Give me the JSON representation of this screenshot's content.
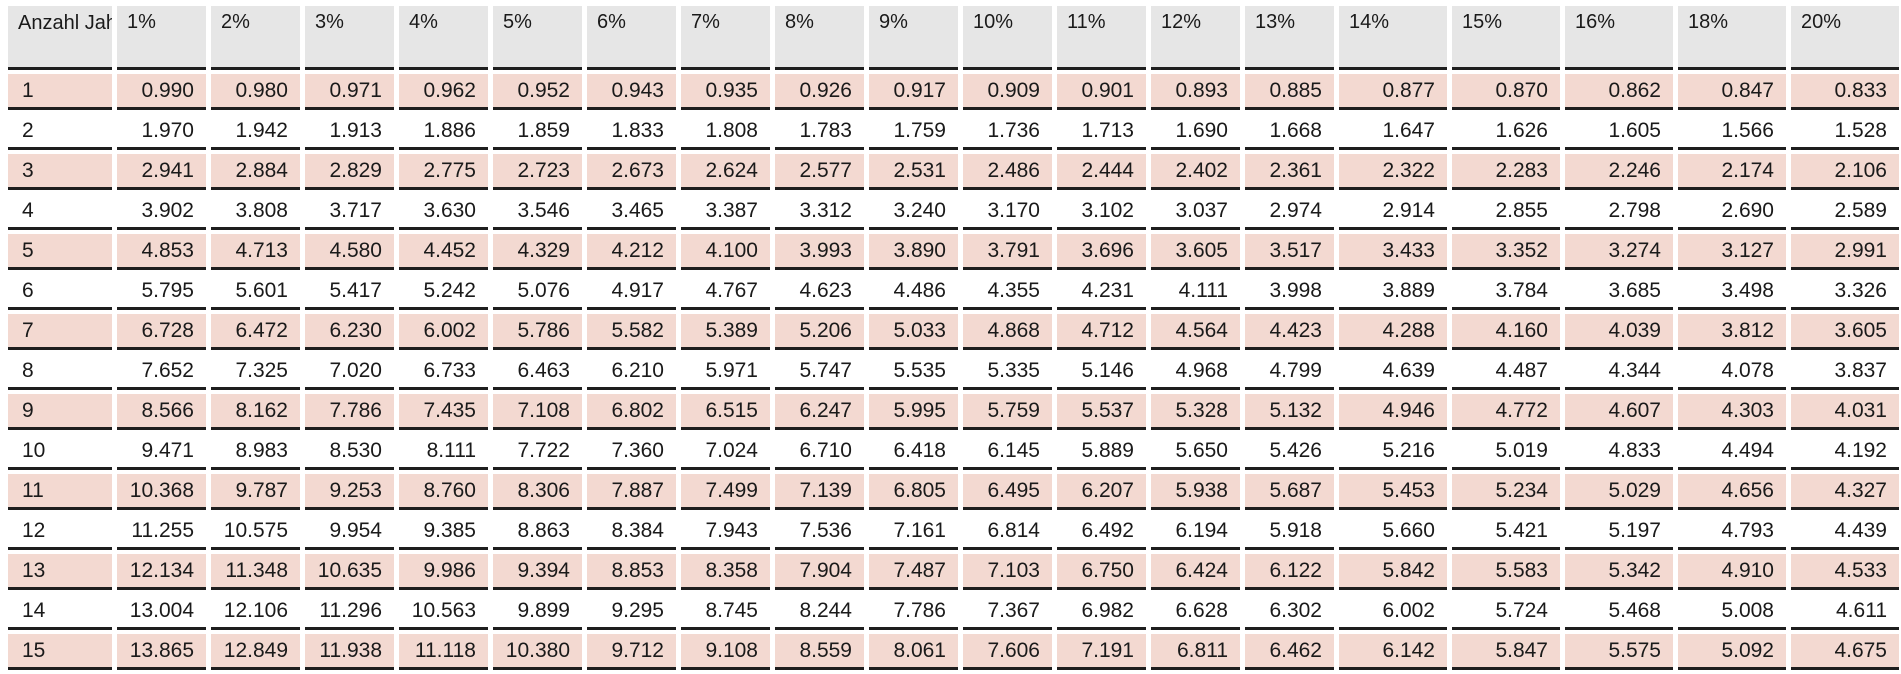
{
  "table": {
    "row_header_label": "Anzahl Jahre",
    "columns": [
      "1%",
      "2%",
      "3%",
      "4%",
      "5%",
      "6%",
      "7%",
      "8%",
      "9%",
      "10%",
      "11%",
      "12%",
      "13%",
      "14%",
      "15%",
      "16%",
      "18%",
      "20%"
    ],
    "rows": [
      {
        "year": "1",
        "values": [
          "0.990",
          "0.980",
          "0.971",
          "0.962",
          "0.952",
          "0.943",
          "0.935",
          "0.926",
          "0.917",
          "0.909",
          "0.901",
          "0.893",
          "0.885",
          "0.877",
          "0.870",
          "0.862",
          "0.847",
          "0.833"
        ]
      },
      {
        "year": "2",
        "values": [
          "1.970",
          "1.942",
          "1.913",
          "1.886",
          "1.859",
          "1.833",
          "1.808",
          "1.783",
          "1.759",
          "1.736",
          "1.713",
          "1.690",
          "1.668",
          "1.647",
          "1.626",
          "1.605",
          "1.566",
          "1.528"
        ]
      },
      {
        "year": "3",
        "values": [
          "2.941",
          "2.884",
          "2.829",
          "2.775",
          "2.723",
          "2.673",
          "2.624",
          "2.577",
          "2.531",
          "2.486",
          "2.444",
          "2.402",
          "2.361",
          "2.322",
          "2.283",
          "2.246",
          "2.174",
          "2.106"
        ]
      },
      {
        "year": "4",
        "values": [
          "3.902",
          "3.808",
          "3.717",
          "3.630",
          "3.546",
          "3.465",
          "3.387",
          "3.312",
          "3.240",
          "3.170",
          "3.102",
          "3.037",
          "2.974",
          "2.914",
          "2.855",
          "2.798",
          "2.690",
          "2.589"
        ]
      },
      {
        "year": "5",
        "values": [
          "4.853",
          "4.713",
          "4.580",
          "4.452",
          "4.329",
          "4.212",
          "4.100",
          "3.993",
          "3.890",
          "3.791",
          "3.696",
          "3.605",
          "3.517",
          "3.433",
          "3.352",
          "3.274",
          "3.127",
          "2.991"
        ]
      },
      {
        "year": "6",
        "values": [
          "5.795",
          "5.601",
          "5.417",
          "5.242",
          "5.076",
          "4.917",
          "4.767",
          "4.623",
          "4.486",
          "4.355",
          "4.231",
          "4.111",
          "3.998",
          "3.889",
          "3.784",
          "3.685",
          "3.498",
          "3.326"
        ]
      },
      {
        "year": "7",
        "values": [
          "6.728",
          "6.472",
          "6.230",
          "6.002",
          "5.786",
          "5.582",
          "5.389",
          "5.206",
          "5.033",
          "4.868",
          "4.712",
          "4.564",
          "4.423",
          "4.288",
          "4.160",
          "4.039",
          "3.812",
          "3.605"
        ]
      },
      {
        "year": "8",
        "values": [
          "7.652",
          "7.325",
          "7.020",
          "6.733",
          "6.463",
          "6.210",
          "5.971",
          "5.747",
          "5.535",
          "5.335",
          "5.146",
          "4.968",
          "4.799",
          "4.639",
          "4.487",
          "4.344",
          "4.078",
          "3.837"
        ]
      },
      {
        "year": "9",
        "values": [
          "8.566",
          "8.162",
          "7.786",
          "7.435",
          "7.108",
          "6.802",
          "6.515",
          "6.247",
          "5.995",
          "5.759",
          "5.537",
          "5.328",
          "5.132",
          "4.946",
          "4.772",
          "4.607",
          "4.303",
          "4.031"
        ]
      },
      {
        "year": "10",
        "values": [
          "9.471",
          "8.983",
          "8.530",
          "8.111",
          "7.722",
          "7.360",
          "7.024",
          "6.710",
          "6.418",
          "6.145",
          "5.889",
          "5.650",
          "5.426",
          "5.216",
          "5.019",
          "4.833",
          "4.494",
          "4.192"
        ]
      },
      {
        "year": "11",
        "values": [
          "10.368",
          "9.787",
          "9.253",
          "8.760",
          "8.306",
          "7.887",
          "7.499",
          "7.139",
          "6.805",
          "6.495",
          "6.207",
          "5.938",
          "5.687",
          "5.453",
          "5.234",
          "5.029",
          "4.656",
          "4.327"
        ]
      },
      {
        "year": "12",
        "values": [
          "11.255",
          "10.575",
          "9.954",
          "9.385",
          "8.863",
          "8.384",
          "7.943",
          "7.536",
          "7.161",
          "6.814",
          "6.492",
          "6.194",
          "5.918",
          "5.660",
          "5.421",
          "5.197",
          "4.793",
          "4.439"
        ]
      },
      {
        "year": "13",
        "values": [
          "12.134",
          "11.348",
          "10.635",
          "9.986",
          "9.394",
          "8.853",
          "8.358",
          "7.904",
          "7.487",
          "7.103",
          "6.750",
          "6.424",
          "6.122",
          "5.842",
          "5.583",
          "5.342",
          "4.910",
          "4.533"
        ]
      },
      {
        "year": "14",
        "values": [
          "13.004",
          "12.106",
          "11.296",
          "10.563",
          "9.899",
          "9.295",
          "8.745",
          "8.244",
          "7.786",
          "7.367",
          "6.982",
          "6.628",
          "6.302",
          "6.002",
          "5.724",
          "5.468",
          "5.008",
          "4.611"
        ]
      },
      {
        "year": "15",
        "values": [
          "13.865",
          "12.849",
          "11.938",
          "11.118",
          "10.380",
          "9.712",
          "9.108",
          "8.559",
          "8.061",
          "7.606",
          "7.191",
          "6.811",
          "6.462",
          "6.142",
          "5.847",
          "5.575",
          "5.092",
          "4.675"
        ]
      }
    ],
    "colors": {
      "header_bg": "#e6e6e6",
      "shaded_row_bg": "#f3d9d1",
      "plain_row_bg": "#ffffff",
      "rule": "#1e1e1e"
    }
  }
}
